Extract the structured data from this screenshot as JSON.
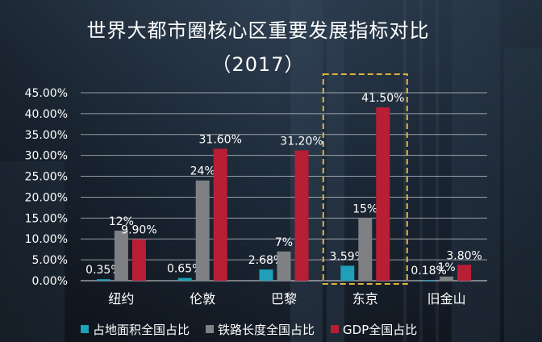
{
  "chart_data": {
    "type": "bar",
    "title": "世界大都市圈核心区重要发展指标对比",
    "subtitle": "（2017）",
    "categories": [
      "纽约",
      "伦敦",
      "巴黎",
      "东京",
      "旧金山"
    ],
    "series": [
      {
        "name": "占地面积全国占比",
        "color": "#1f9fb8",
        "values": [
          0.35,
          0.65,
          2.68,
          3.59,
          0.18
        ],
        "labels": [
          "0.35%",
          "0.65%",
          "2.68%",
          "3.59%",
          "0.18%"
        ]
      },
      {
        "name": "铁路长度全国占比",
        "color": "#7f8083",
        "values": [
          12,
          24,
          7,
          15,
          1
        ],
        "labels": [
          "12%",
          "24%",
          "7%",
          "15%",
          "1%"
        ]
      },
      {
        "name": "GDP全国占比",
        "color": "#b81e34",
        "values": [
          9.9,
          31.6,
          31.2,
          41.5,
          3.8
        ],
        "labels": [
          "9.90%",
          "31.60%",
          "31.20%",
          "41.50%",
          "3.80%"
        ]
      }
    ],
    "yticks": [
      "0.00%",
      "5.00%",
      "10.00%",
      "15.00%",
      "20.00%",
      "25.00%",
      "30.00%",
      "35.00%",
      "40.00%",
      "45.00%"
    ],
    "ylim": [
      0,
      45
    ],
    "grid": true,
    "legend_position": "bottom",
    "highlight_category": "东京",
    "highlight_color": "#e0b43a"
  }
}
